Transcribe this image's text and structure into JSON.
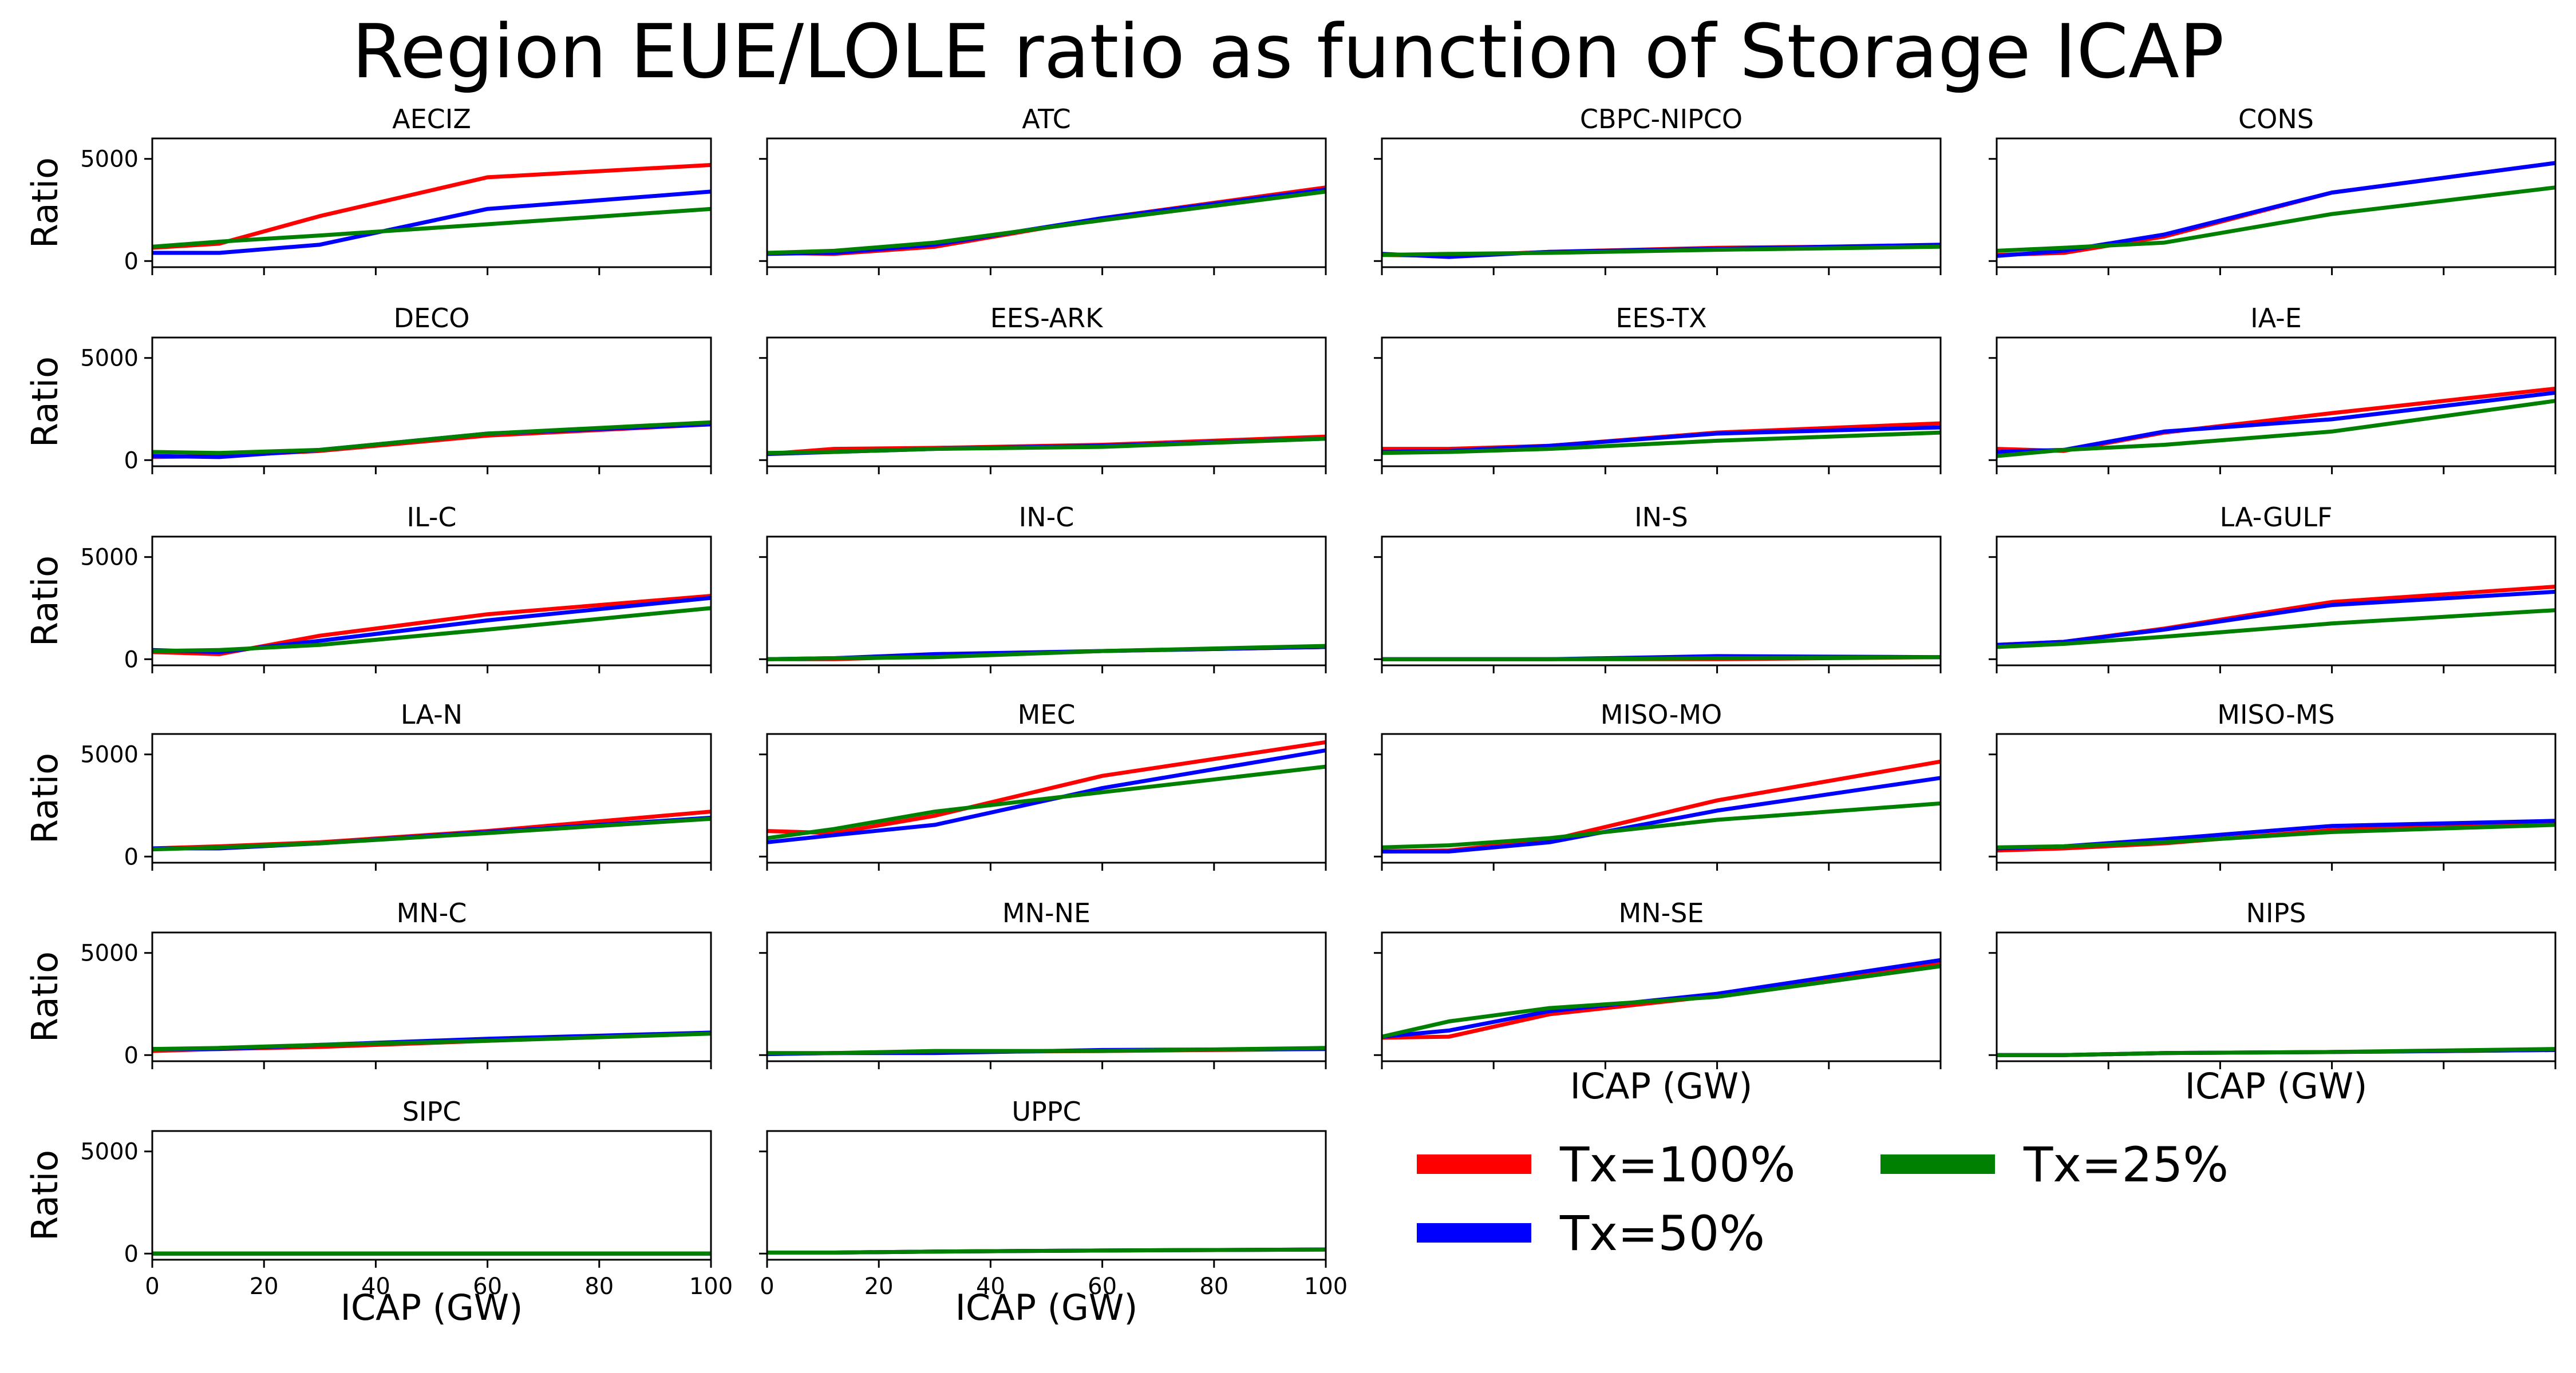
{
  "figure": {
    "title": "Region EUE/LOLE ratio as function of Storage ICAP"
  },
  "chart_data": {
    "type": "line",
    "title": "Region EUE/LOLE ratio as function of Storage ICAP",
    "xlabel": "ICAP (GW)",
    "ylabel": "Ratio",
    "xlim": [
      0,
      100
    ],
    "ylim": [
      -300,
      6000
    ],
    "xticks": [
      0,
      20,
      40,
      60,
      80,
      100
    ],
    "yticks": [
      0,
      5000
    ],
    "grid": false,
    "legend": {
      "placement": "bottom-right",
      "entries": [
        {
          "label": "Tx=100%",
          "color": "#ff0000"
        },
        {
          "label": "Tx=50%",
          "color": "#0000ff"
        },
        {
          "label": "Tx=25%",
          "color": "#008000"
        }
      ]
    },
    "x": [
      0,
      12,
      30,
      60,
      100
    ],
    "series_colors": {
      "Tx=100%": "#ff0000",
      "Tx=50%": "#0000ff",
      "Tx=25%": "#008000"
    },
    "panels": [
      {
        "region": "AECIZ",
        "series": [
          {
            "name": "Tx=100%",
            "values": [
              650,
              850,
              2200,
              4100,
              4700
            ]
          },
          {
            "name": "Tx=50%",
            "values": [
              400,
              400,
              800,
              2550,
              3400
            ]
          },
          {
            "name": "Tx=25%",
            "values": [
              700,
              950,
              1250,
              1800,
              2550
            ]
          }
        ]
      },
      {
        "region": "ATC",
        "series": [
          {
            "name": "Tx=100%",
            "values": [
              400,
              350,
              700,
              2100,
              3600
            ]
          },
          {
            "name": "Tx=50%",
            "values": [
              350,
              400,
              800,
              2100,
              3500
            ]
          },
          {
            "name": "Tx=25%",
            "values": [
              400,
              500,
              900,
              2000,
              3400
            ]
          }
        ]
      },
      {
        "region": "CBPC-NIPCO",
        "series": [
          {
            "name": "Tx=100%",
            "values": [
              300,
              250,
              450,
              650,
              750
            ]
          },
          {
            "name": "Tx=50%",
            "values": [
              350,
              200,
              450,
              600,
              800
            ]
          },
          {
            "name": "Tx=25%",
            "values": [
              300,
              350,
              400,
              550,
              700
            ]
          }
        ]
      },
      {
        "region": "CONS",
        "series": [
          {
            "name": "Tx=100%",
            "values": [
              300,
              400,
              1200,
              3350,
              4800
            ]
          },
          {
            "name": "Tx=50%",
            "values": [
              250,
              500,
              1300,
              3350,
              4800
            ]
          },
          {
            "name": "Tx=25%",
            "values": [
              500,
              650,
              900,
              2300,
              3600
            ]
          }
        ]
      },
      {
        "region": "DECO",
        "series": [
          {
            "name": "Tx=100%",
            "values": [
              150,
              200,
              450,
              1200,
              1750
            ]
          },
          {
            "name": "Tx=50%",
            "values": [
              200,
              150,
              500,
              1300,
              1750
            ]
          },
          {
            "name": "Tx=25%",
            "values": [
              400,
              350,
              500,
              1300,
              1850
            ]
          }
        ]
      },
      {
        "region": "EES-ARK",
        "series": [
          {
            "name": "Tx=100%",
            "values": [
              300,
              550,
              600,
              750,
              1150
            ]
          },
          {
            "name": "Tx=50%",
            "values": [
              300,
              400,
              550,
              700,
              1050
            ]
          },
          {
            "name": "Tx=25%",
            "values": [
              350,
              400,
              550,
              650,
              1050
            ]
          }
        ]
      },
      {
        "region": "EES-TX",
        "series": [
          {
            "name": "Tx=100%",
            "values": [
              550,
              550,
              700,
              1350,
              1800
            ]
          },
          {
            "name": "Tx=50%",
            "values": [
              400,
              450,
              700,
              1300,
              1600
            ]
          },
          {
            "name": "Tx=25%",
            "values": [
              350,
              400,
              550,
              950,
              1350
            ]
          }
        ]
      },
      {
        "region": "IA-E",
        "series": [
          {
            "name": "Tx=100%",
            "values": [
              550,
              450,
              1350,
              2300,
              3500
            ]
          },
          {
            "name": "Tx=50%",
            "values": [
              400,
              500,
              1400,
              2000,
              3300
            ]
          },
          {
            "name": "Tx=25%",
            "values": [
              200,
              500,
              750,
              1400,
              2900
            ]
          }
        ]
      },
      {
        "region": "IL-C",
        "series": [
          {
            "name": "Tx=100%",
            "values": [
              350,
              250,
              1150,
              2200,
              3100
            ]
          },
          {
            "name": "Tx=50%",
            "values": [
              450,
              350,
              900,
              1900,
              3000
            ]
          },
          {
            "name": "Tx=25%",
            "values": [
              400,
              450,
              700,
              1450,
              2500
            ]
          }
        ]
      },
      {
        "region": "IN-C",
        "series": [
          {
            "name": "Tx=100%",
            "values": [
              0,
              0,
              150,
              400,
              600
            ]
          },
          {
            "name": "Tx=50%",
            "values": [
              0,
              50,
              250,
              400,
              600
            ]
          },
          {
            "name": "Tx=25%",
            "values": [
              0,
              50,
              100,
              400,
              650
            ]
          }
        ]
      },
      {
        "region": "IN-S",
        "series": [
          {
            "name": "Tx=100%",
            "values": [
              0,
              0,
              0,
              0,
              100
            ]
          },
          {
            "name": "Tx=50%",
            "values": [
              0,
              0,
              0,
              150,
              100
            ]
          },
          {
            "name": "Tx=25%",
            "values": [
              0,
              0,
              0,
              50,
              100
            ]
          }
        ]
      },
      {
        "region": "LA-GULF",
        "series": [
          {
            "name": "Tx=100%",
            "values": [
              700,
              850,
              1500,
              2800,
              3550
            ]
          },
          {
            "name": "Tx=50%",
            "values": [
              700,
              850,
              1450,
              2650,
              3300
            ]
          },
          {
            "name": "Tx=25%",
            "values": [
              600,
              750,
              1100,
              1750,
              2400
            ]
          }
        ]
      },
      {
        "region": "LA-N",
        "series": [
          {
            "name": "Tx=100%",
            "values": [
              400,
              500,
              700,
              1250,
              2200
            ]
          },
          {
            "name": "Tx=50%",
            "values": [
              400,
              400,
              650,
              1200,
              1900
            ]
          },
          {
            "name": "Tx=25%",
            "values": [
              350,
              450,
              650,
              1150,
              1850
            ]
          }
        ]
      },
      {
        "region": "MEC",
        "series": [
          {
            "name": "Tx=100%",
            "values": [
              1250,
              1150,
              2000,
              3950,
              5600
            ]
          },
          {
            "name": "Tx=50%",
            "values": [
              700,
              1050,
              1550,
              3350,
              5200
            ]
          },
          {
            "name": "Tx=25%",
            "values": [
              900,
              1350,
              2200,
              3150,
              4400
            ]
          }
        ]
      },
      {
        "region": "MISO-MO",
        "series": [
          {
            "name": "Tx=100%",
            "values": [
              250,
              300,
              800,
              2750,
              4650
            ]
          },
          {
            "name": "Tx=50%",
            "values": [
              250,
              250,
              700,
              2250,
              3850
            ]
          },
          {
            "name": "Tx=25%",
            "values": [
              450,
              550,
              900,
              1800,
              2600
            ]
          }
        ]
      },
      {
        "region": "MISO-MS",
        "series": [
          {
            "name": "Tx=100%",
            "values": [
              300,
              400,
              650,
              1300,
              1650
            ]
          },
          {
            "name": "Tx=50%",
            "values": [
              400,
              500,
              850,
              1500,
              1750
            ]
          },
          {
            "name": "Tx=25%",
            "values": [
              450,
              500,
              700,
              1200,
              1550
            ]
          }
        ]
      },
      {
        "region": "MN-C",
        "series": [
          {
            "name": "Tx=100%",
            "values": [
              200,
              300,
              400,
              700,
              1100
            ]
          },
          {
            "name": "Tx=50%",
            "values": [
              300,
              300,
              500,
              800,
              1100
            ]
          },
          {
            "name": "Tx=25%",
            "values": [
              300,
              350,
              500,
              700,
              1050
            ]
          }
        ]
      },
      {
        "region": "MN-NE",
        "series": [
          {
            "name": "Tx=100%",
            "values": [
              50,
              100,
              150,
              200,
              300
            ]
          },
          {
            "name": "Tx=50%",
            "values": [
              50,
              100,
              100,
              250,
              300
            ]
          },
          {
            "name": "Tx=25%",
            "values": [
              100,
              100,
              200,
              200,
              350
            ]
          }
        ]
      },
      {
        "region": "MN-SE",
        "series": [
          {
            "name": "Tx=100%",
            "values": [
              850,
              900,
              2000,
              2900,
              4500
            ]
          },
          {
            "name": "Tx=50%",
            "values": [
              900,
              1200,
              2150,
              3000,
              4650
            ]
          },
          {
            "name": "Tx=25%",
            "values": [
              900,
              1650,
              2300,
              2850,
              4350
            ]
          }
        ]
      },
      {
        "region": "NIPS",
        "series": [
          {
            "name": "Tx=100%",
            "values": [
              0,
              0,
              100,
              150,
              250
            ]
          },
          {
            "name": "Tx=50%",
            "values": [
              0,
              0,
              100,
              150,
              250
            ]
          },
          {
            "name": "Tx=25%",
            "values": [
              0,
              0,
              100,
              150,
              300
            ]
          }
        ]
      },
      {
        "region": "SIPC",
        "series": [
          {
            "name": "Tx=100%",
            "values": [
              0,
              0,
              0,
              0,
              0
            ]
          },
          {
            "name": "Tx=50%",
            "values": [
              0,
              0,
              0,
              0,
              0
            ]
          },
          {
            "name": "Tx=25%",
            "values": [
              0,
              0,
              0,
              0,
              0
            ]
          }
        ]
      },
      {
        "region": "UPPC",
        "series": [
          {
            "name": "Tx=100%",
            "values": [
              50,
              50,
              100,
              150,
              200
            ]
          },
          {
            "name": "Tx=50%",
            "values": [
              50,
              50,
              100,
              150,
              200
            ]
          },
          {
            "name": "Tx=25%",
            "values": [
              50,
              50,
              100,
              150,
              200
            ]
          }
        ]
      }
    ]
  }
}
